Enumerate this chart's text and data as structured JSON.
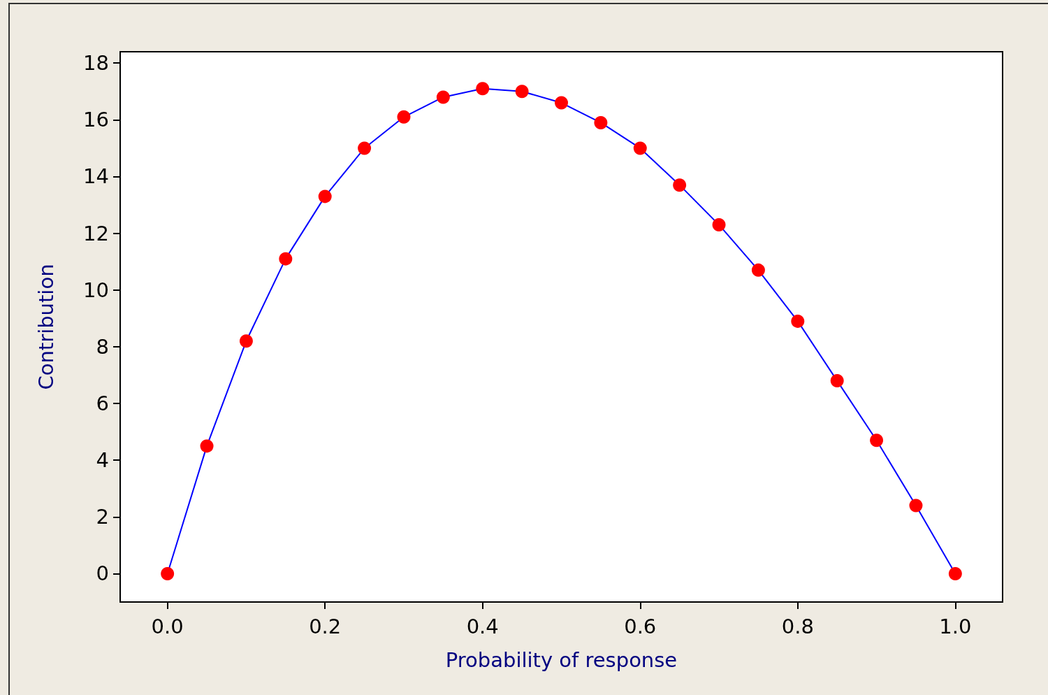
{
  "chart_data": {
    "type": "line",
    "xlabel": "Probability of response",
    "ylabel": "Contribution",
    "x": [
      0,
      0.05,
      0.1,
      0.15,
      0.2,
      0.25,
      0.3,
      0.35,
      0.4,
      0.45,
      0.5,
      0.55,
      0.6,
      0.65,
      0.7,
      0.75,
      0.8,
      0.85,
      0.9,
      0.95,
      1.0
    ],
    "series": [
      {
        "color": "#0000ff",
        "colors": [
          "#ff0000",
          "#ff0000",
          "#ff0000",
          "#ff0000",
          "#ff0000",
          "#ff0000",
          "#ff0000",
          "#ff0000",
          "#ff0000",
          "#ff0000",
          "#ff0000",
          "#ff0000",
          "#ff0000",
          "#ff0000",
          "#ff0000",
          "#ff0000",
          "#ff0000",
          "#ff0000",
          "#ff0000",
          "#ff0000",
          "#ff0000"
        ],
        "values": [
          0,
          4.5,
          8.2,
          11.1,
          13.3,
          15.0,
          16.1,
          16.8,
          17.1,
          17.0,
          16.6,
          15.9,
          15.0,
          13.7,
          12.3,
          10.7,
          8.9,
          6.8,
          4.7,
          2.4,
          0
        ]
      }
    ],
    "xlim": [
      -0.06,
      1.06
    ],
    "xticks": [
      {
        "value": 0,
        "label": "0.0"
      },
      {
        "value": 0.2,
        "label": "0.2"
      },
      {
        "value": 0.4,
        "label": "0.4"
      },
      {
        "value": 0.6,
        "label": "0.6"
      },
      {
        "value": 0.8,
        "label": "0.8"
      },
      {
        "value": 1,
        "label": "1.0"
      }
    ],
    "ylim": [
      -1,
      18.4
    ],
    "yticks": [
      0,
      2,
      4,
      6,
      8,
      10,
      12,
      14,
      16,
      18
    ],
    "marker": "circle",
    "line_style": "solid",
    "grid": false
  }
}
